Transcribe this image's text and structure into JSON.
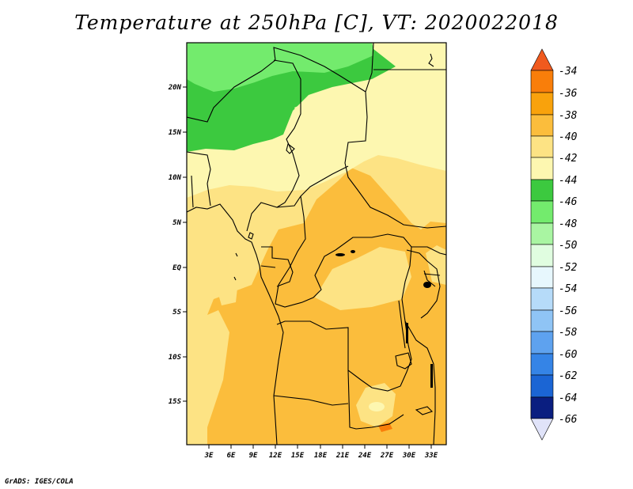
{
  "title": "Temperature at 250hPa [C], VT: 2020022018",
  "footer": "GrADS: IGES/COLA",
  "map": {
    "lat_labels": [
      "20N",
      "15N",
      "10N",
      "5N",
      "EQ",
      "5S",
      "10S",
      "15S"
    ],
    "lon_labels": [
      "3E",
      "6E",
      "9E",
      "12E",
      "15E",
      "18E",
      "21E",
      "24E",
      "27E",
      "30E",
      "33E"
    ]
  },
  "colorbar": {
    "levels": [
      "-34",
      "-36",
      "-38",
      "-40",
      "-42",
      "-44",
      "-46",
      "-48",
      "-50",
      "-52",
      "-54",
      "-56",
      "-58",
      "-60",
      "-62",
      "-64",
      "-66"
    ],
    "colors": {
      "top_arrow": "#f05a1e",
      "c36": "#f97e0a",
      "c38": "#f9a20c",
      "c40": "#fbbd3c",
      "c42": "#fde384",
      "c44": "#fdf7b0",
      "c46": "#3cc93f",
      "c48": "#73eb6d",
      "c50": "#a9f5a2",
      "c52": "#e0fde0",
      "c54": "#e7f7fd",
      "c56": "#b6dbf9",
      "c58": "#8fc4f5",
      "c60": "#5ea2ef",
      "c62": "#3584e6",
      "c64": "#1b65d4",
      "c66": "#0b4fb8",
      "bottom_block": "#0a1e80",
      "bottom_arrow": "#e0e3f9"
    }
  }
}
